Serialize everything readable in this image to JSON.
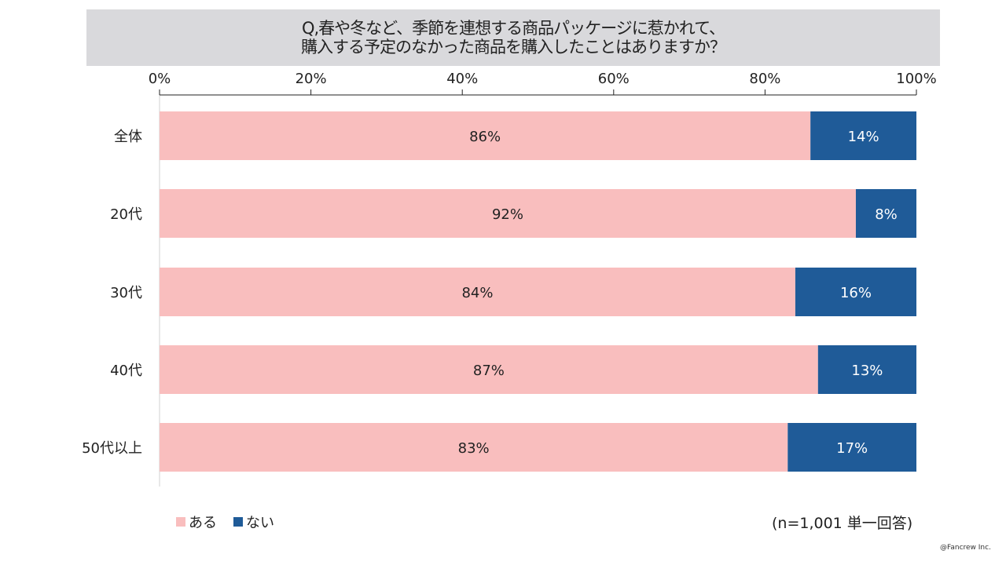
{
  "title_line1": "Q,春や冬など、季節を連想する商品パッケージに惹かれて、",
  "title_line2": "購入する予定のなかった商品を購入したことはありますか？",
  "note": "(n=1,001 単一回答)",
  "copyright": "@Fancrew Inc.",
  "chart_data": {
    "type": "bar",
    "orientation": "horizontal-stacked-100",
    "categories": [
      "全体",
      "20代",
      "30代",
      "40代",
      "50代以上"
    ],
    "series": [
      {
        "name": "ある",
        "color": "#f9bebe",
        "values": [
          86,
          92,
          84,
          87,
          83
        ]
      },
      {
        "name": "ない",
        "color": "#1f5b98",
        "values": [
          14,
          8,
          16,
          13,
          17
        ]
      }
    ],
    "xticks": [
      "0%",
      "20%",
      "40%",
      "60%",
      "80%",
      "100%"
    ],
    "xlim": [
      0,
      100
    ],
    "legend": "bottom-left"
  }
}
